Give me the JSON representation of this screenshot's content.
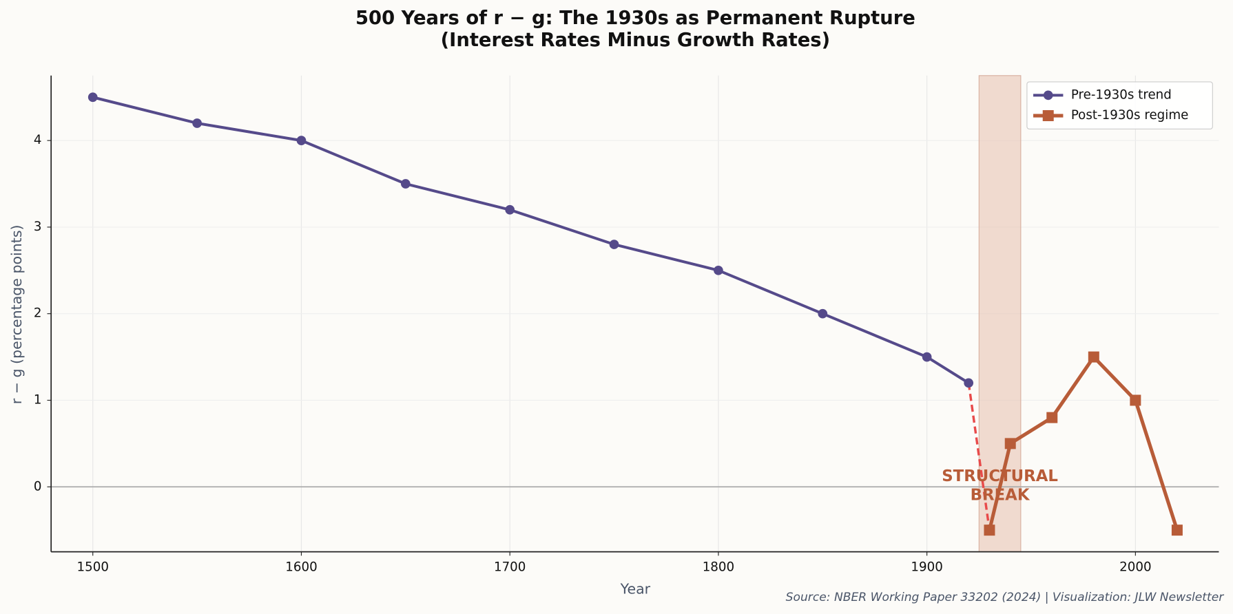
{
  "chart_data": {
    "type": "line",
    "title": "500 Years of r − g: The 1930s as Permanent Rupture",
    "subtitle": "(Interest Rates Minus Growth Rates)",
    "x_label": "Year",
    "y_label": "r − g (percentage points)",
    "source": "Source: NBER Working Paper 33202 (2024) | Visualization: JLW Newsletter",
    "series": [
      {
        "name": "Pre-1930s trend",
        "color": "#554a8a",
        "marker": "circle",
        "x": [
          1500,
          1550,
          1600,
          1650,
          1700,
          1750,
          1800,
          1850,
          1900,
          1920
        ],
        "values": [
          4.5,
          4.2,
          4.0,
          3.5,
          3.2,
          2.8,
          2.5,
          2.0,
          1.5,
          1.2
        ]
      },
      {
        "name": "Post-1930s regime",
        "color": "#b85c38",
        "marker": "square",
        "x": [
          1930,
          1940,
          1960,
          1980,
          2000,
          2020
        ],
        "values": [
          -0.5,
          0.5,
          0.8,
          1.5,
          1.0,
          -0.5
        ]
      }
    ],
    "break_connector": {
      "color": "#e84a4a",
      "x": [
        1920,
        1930
      ],
      "values": [
        1.2,
        -0.5
      ]
    },
    "shade_span": [
      1925,
      1945
    ],
    "annotation": {
      "lines": [
        "STRUCTURAL",
        "BREAK"
      ],
      "x": 1935,
      "y": 0,
      "color": "#b85c38"
    },
    "hline": 0,
    "xlim": [
      1480,
      2040
    ],
    "ylim": [
      -0.75,
      4.75
    ],
    "xticks": [
      1500,
      1600,
      1700,
      1800,
      1900,
      2000
    ],
    "yticks": [
      0,
      1,
      2,
      3,
      4
    ],
    "grid": true,
    "legend": "upper right"
  }
}
